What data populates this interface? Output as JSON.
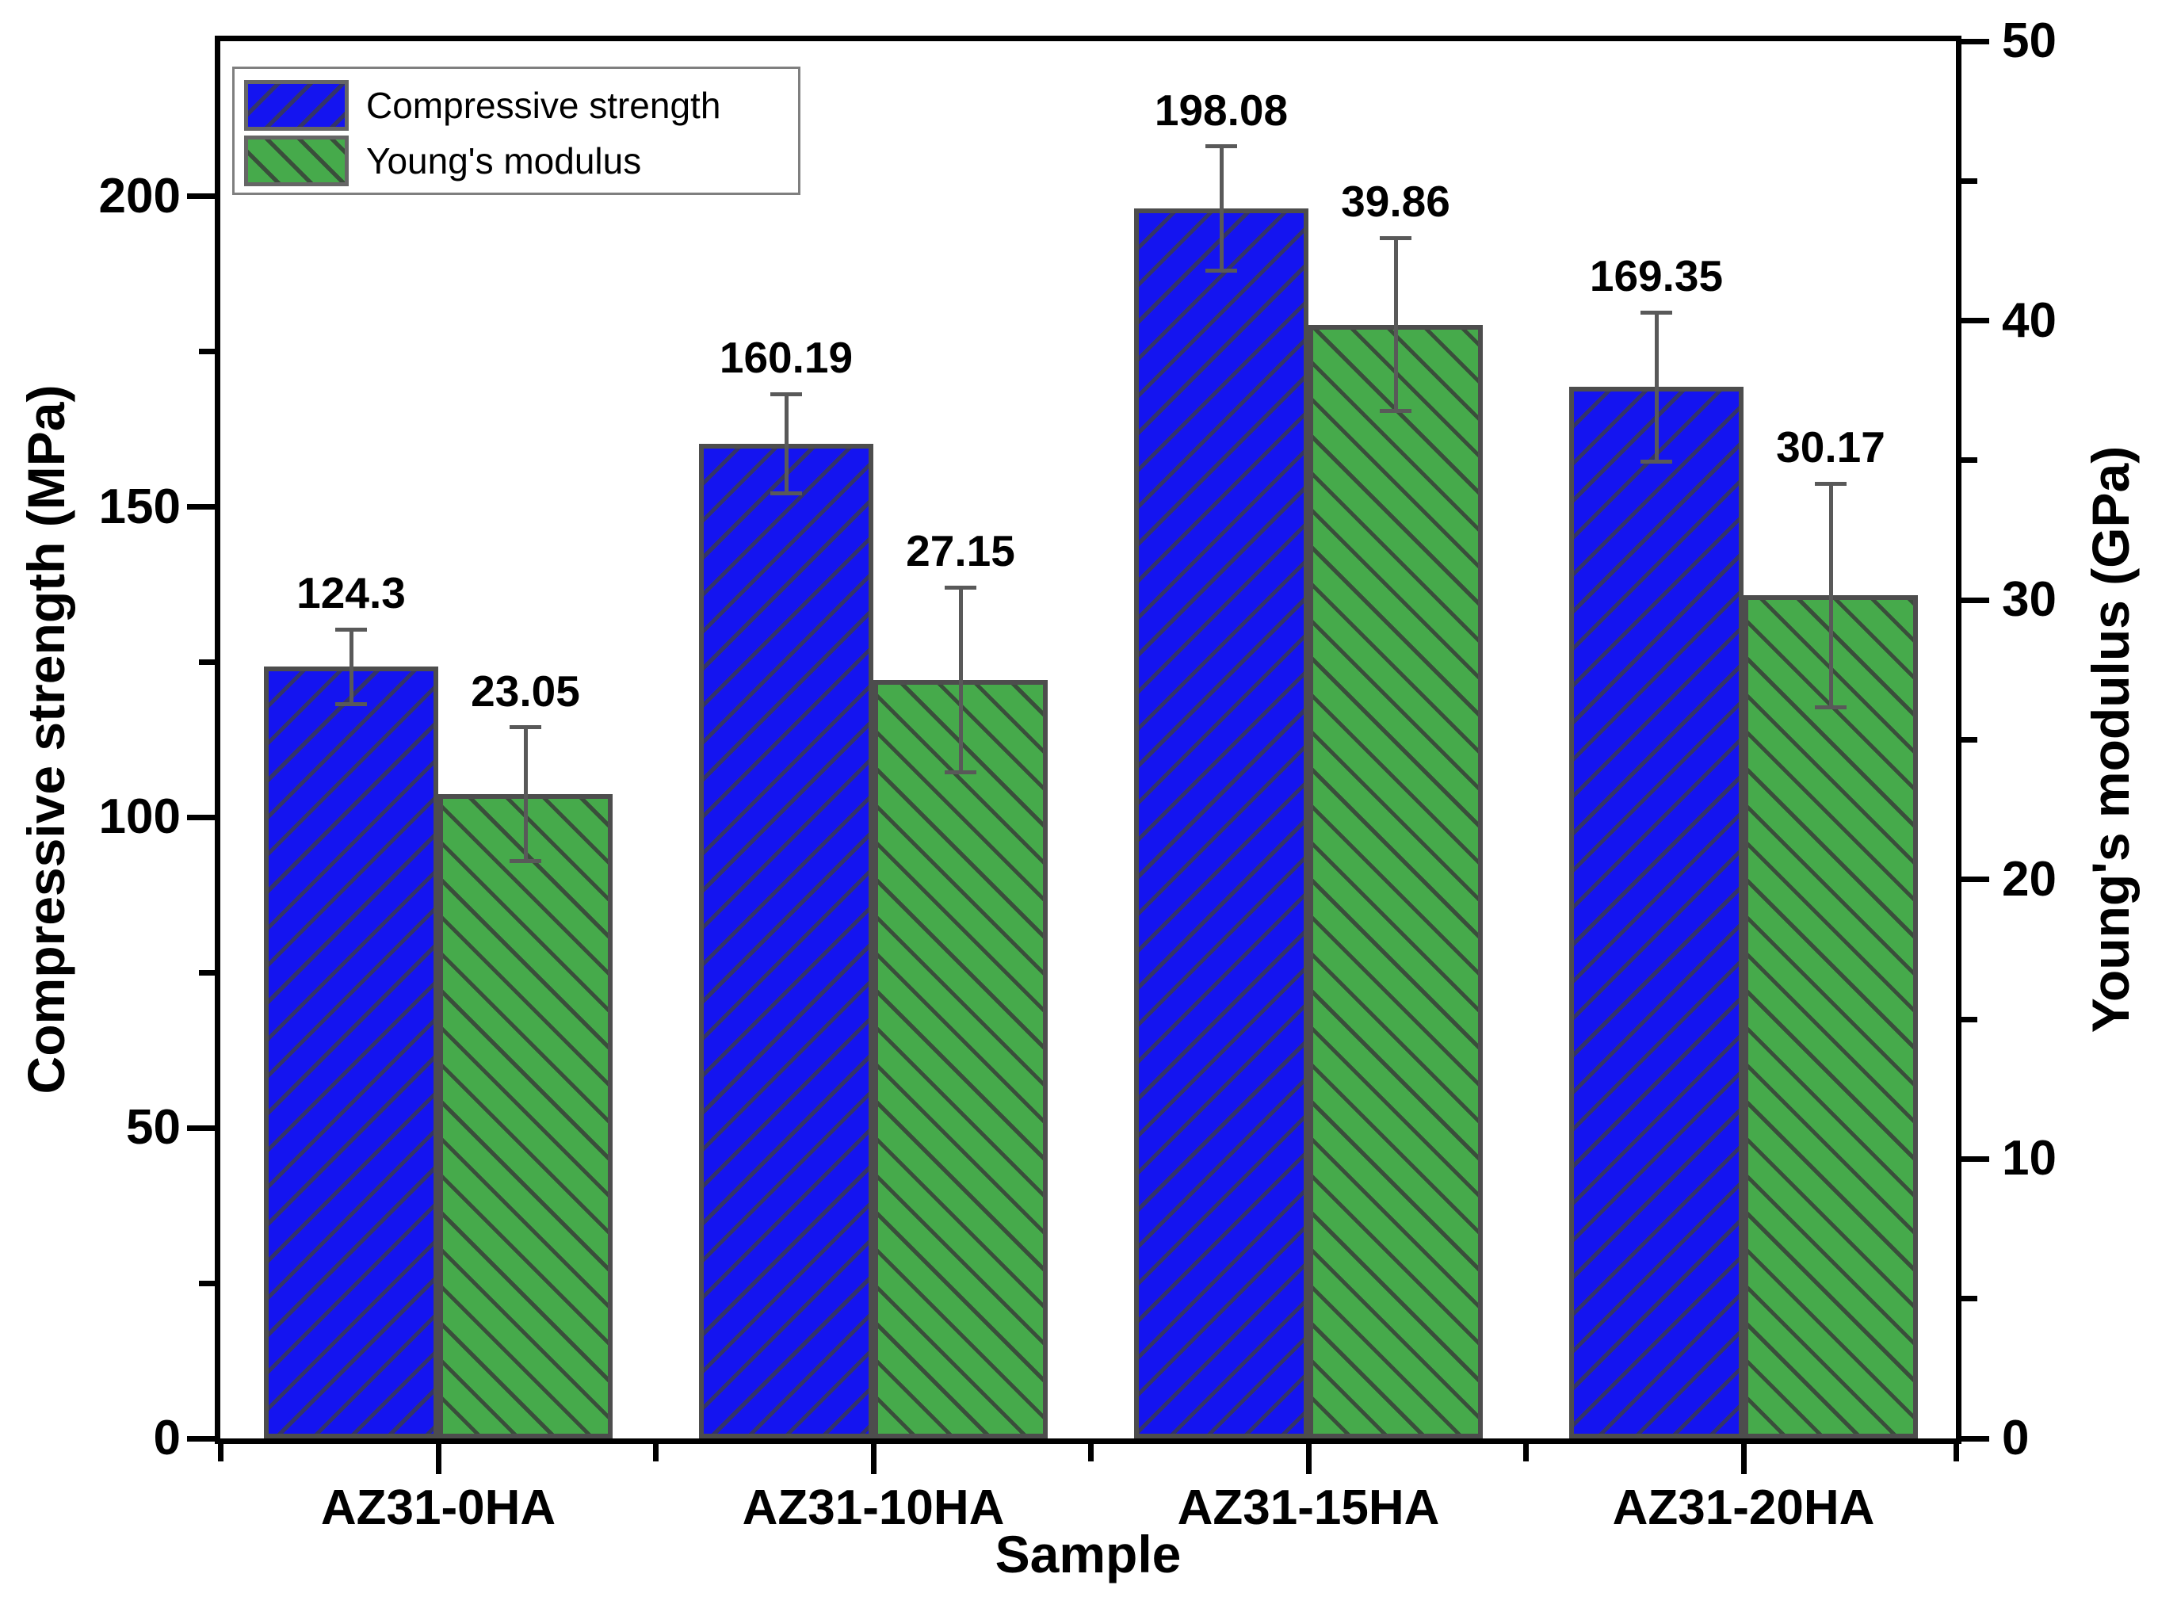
{
  "figure": {
    "background": "#ffffff",
    "legend": {
      "position": "upper-left",
      "items": [
        {
          "label": "Compressive strength",
          "color": "#1414f0",
          "hatch": "/"
        },
        {
          "label": "Young's modulus",
          "color": "#46aa4b",
          "hatch": "\\"
        }
      ]
    }
  },
  "chart_data": {
    "type": "bar",
    "title": "",
    "xlabel": "Sample",
    "ylabel_left": "Compressive strength (MPa)",
    "ylabel_right": "Young's modulus (GPa)",
    "categories": [
      "AZ31-0HA",
      "AZ31-10HA",
      "AZ31-15HA",
      "AZ31-20HA"
    ],
    "series": [
      {
        "name": "Compressive strength",
        "axis": "left",
        "unit": "MPa",
        "color": "#1414f0",
        "hatch": "/",
        "values": [
          124.3,
          160.19,
          198.08,
          169.35
        ],
        "errors": [
          6,
          8,
          10,
          12
        ],
        "labels": [
          "124.3",
          "160.19",
          "198.08",
          "169.35"
        ]
      },
      {
        "name": "Young's modulus",
        "axis": "right",
        "unit": "GPa",
        "color": "#46aa4b",
        "hatch": "\\",
        "values": [
          23.05,
          27.15,
          39.86,
          30.17
        ],
        "errors": [
          2.4,
          3.3,
          3.1,
          4.0
        ],
        "labels": [
          "23.05",
          "27.15",
          "39.86",
          "30.17"
        ]
      }
    ],
    "ylim_left": [
      0,
      225
    ],
    "ylim_right": [
      0,
      50
    ],
    "yticks_left": [
      "0",
      "50",
      "100",
      "150",
      "200"
    ],
    "yticks_right": [
      "0",
      "10",
      "20",
      "30",
      "40",
      "50"
    ],
    "minor_step_left": 25,
    "minor_step_right": 5,
    "grid": false,
    "legend_position": "upper-left",
    "bar_edge_color": "#4d4d4d",
    "error_bar_color": "#595959",
    "axis_color": "#000000"
  }
}
